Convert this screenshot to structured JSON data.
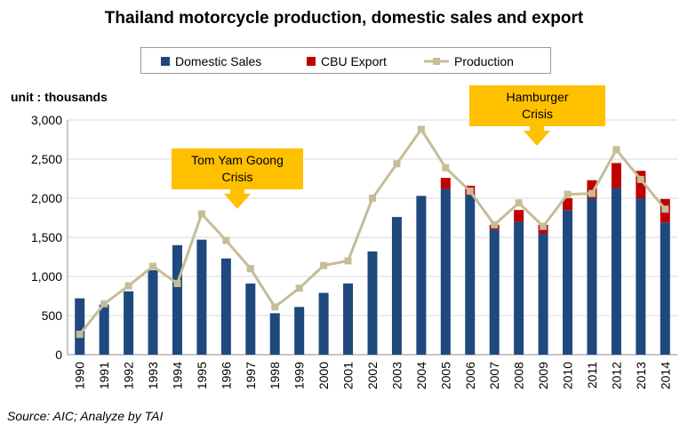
{
  "title": "Thailand  motorcycle production, domestic sales and export",
  "unit_label": "unit : thousands",
  "source": "Source: AIC; Analyze by TAI",
  "annotations": [
    {
      "lines": [
        "Tom Yam Goong",
        "Crisis"
      ]
    },
    {
      "lines": [
        "Hamburger",
        "Crisis"
      ]
    }
  ],
  "colors": {
    "domestic": "#1f497d",
    "export": "#c00000",
    "production": "#c4bd97",
    "grid": "#d9d9d9",
    "callout": "#ffc000"
  },
  "chart_data": {
    "type": "bar",
    "stacked": true,
    "title": "Thailand  motorcycle production, domestic sales and export",
    "ylabel": "unit : thousands",
    "ylim": [
      0,
      3000
    ],
    "yticks": [
      "0",
      "500",
      "1,000",
      "1,500",
      "2,000",
      "2,500",
      "3,000"
    ],
    "ytick_values": [
      0,
      500,
      1000,
      1500,
      2000,
      2500,
      3000
    ],
    "legend_position": "top",
    "grid": true,
    "categories": [
      "1990",
      "1991",
      "1992",
      "1993",
      "1994",
      "1995",
      "1996",
      "1997",
      "1998",
      "1999",
      "2000",
      "2001",
      "2002",
      "2003",
      "2004",
      "2005",
      "2006",
      "2007",
      "2008",
      "2009",
      "2010",
      "2011",
      "2012",
      "2013",
      "2014"
    ],
    "series": [
      {
        "name": "Domestic Sales",
        "type": "bar",
        "values": [
          720,
          640,
          810,
          1080,
          1400,
          1470,
          1230,
          910,
          530,
          610,
          790,
          910,
          1320,
          1760,
          2030,
          2120,
          2040,
          1600,
          1700,
          1550,
          1850,
          2000,
          2130,
          2000,
          1690
        ]
      },
      {
        "name": "CBU Export",
        "type": "bar",
        "values": [
          0,
          0,
          0,
          0,
          0,
          0,
          0,
          0,
          0,
          0,
          0,
          0,
          0,
          0,
          0,
          140,
          120,
          60,
          150,
          110,
          150,
          230,
          320,
          350,
          300
        ]
      },
      {
        "name": "Production",
        "type": "line",
        "values": [
          260,
          650,
          880,
          1130,
          910,
          1800,
          1460,
          1100,
          610,
          850,
          1140,
          1200,
          2000,
          2440,
          2880,
          2390,
          2090,
          1660,
          1940,
          1640,
          2050,
          2060,
          2620,
          2240,
          1860
        ]
      }
    ]
  }
}
